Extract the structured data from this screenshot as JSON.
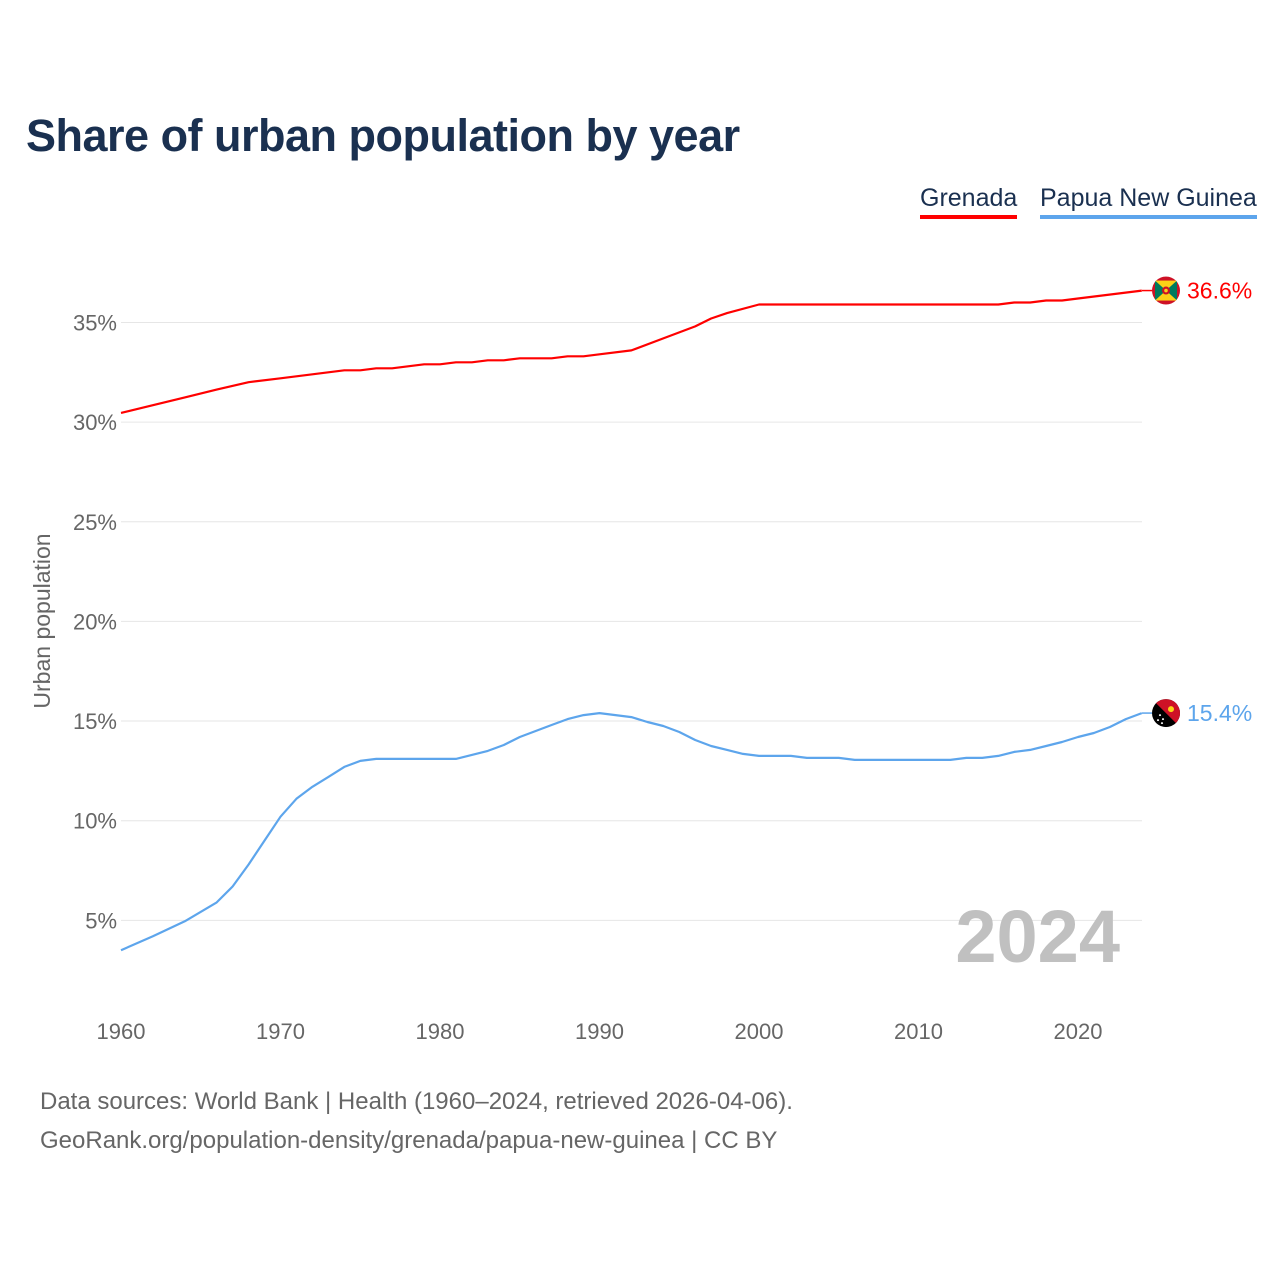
{
  "title": "Share of urban population by year",
  "legend": [
    {
      "label": "Grenada",
      "color": "#ff0000"
    },
    {
      "label": "Papua New Guinea",
      "color": "#5da5ec"
    }
  ],
  "year_watermark": "2024",
  "sources": {
    "line1": "Data sources: World Bank | Health (1960–2024, retrieved 2026-04-06).",
    "line2": "GeoRank.org/population-density/grenada/papua-new-guinea | CC BY"
  },
  "chart_data": {
    "type": "line",
    "title": "Share of urban population by year",
    "xlabel": "",
    "ylabel": "Urban population",
    "xlim": [
      1960,
      2024
    ],
    "ylim": [
      0,
      37
    ],
    "x_ticks": [
      1960,
      1970,
      1980,
      1990,
      2000,
      2010,
      2020
    ],
    "x_tick_labels": [
      "1960",
      "1970",
      "1980",
      "1990",
      "2000",
      "2010",
      "2020"
    ],
    "y_ticks": [
      5,
      10,
      15,
      20,
      25,
      30,
      35
    ],
    "y_tick_labels": [
      "5%",
      "10%",
      "15%",
      "20%",
      "25%",
      "30%",
      "35%"
    ],
    "grid": true,
    "legend_position": "top-right",
    "series": [
      {
        "name": "Grenada",
        "color": "#ff0000",
        "end_label": "36.6%",
        "flag": "grenada-flag",
        "points": [
          [
            1960,
            30.46
          ],
          [
            1962,
            30.85
          ],
          [
            1964,
            31.24
          ],
          [
            1966,
            31.63
          ],
          [
            1968,
            32.0
          ],
          [
            1970,
            32.2
          ],
          [
            1972,
            32.4
          ],
          [
            1974,
            32.6
          ],
          [
            1975,
            32.6
          ],
          [
            1976,
            32.7
          ],
          [
            1977,
            32.7
          ],
          [
            1979,
            32.9
          ],
          [
            1980,
            32.9
          ],
          [
            1981,
            33.0
          ],
          [
            1982,
            33.0
          ],
          [
            1983,
            33.1
          ],
          [
            1984,
            33.1
          ],
          [
            1985,
            33.2
          ],
          [
            1987,
            33.2
          ],
          [
            1988,
            33.3
          ],
          [
            1989,
            33.3
          ],
          [
            1990,
            33.4
          ],
          [
            1992,
            33.6
          ],
          [
            1994,
            34.2
          ],
          [
            1996,
            34.8
          ],
          [
            1997,
            35.2
          ],
          [
            1998,
            35.47
          ],
          [
            2000,
            35.9
          ],
          [
            2015,
            35.9
          ],
          [
            2016,
            36.0
          ],
          [
            2017,
            36.0
          ],
          [
            2018,
            36.1
          ],
          [
            2019,
            36.1
          ],
          [
            2020,
            36.2
          ],
          [
            2024,
            36.6
          ]
        ]
      },
      {
        "name": "Papua New Guinea",
        "color": "#5da5ec",
        "end_label": "15.4%",
        "flag": "papua-new-guinea-flag",
        "points": [
          [
            1960,
            3.5
          ],
          [
            1962,
            4.2
          ],
          [
            1964,
            4.95
          ],
          [
            1966,
            5.9
          ],
          [
            1967,
            6.7
          ],
          [
            1968,
            7.8
          ],
          [
            1969,
            9.0
          ],
          [
            1970,
            10.2
          ],
          [
            1971,
            11.1
          ],
          [
            1972,
            11.7
          ],
          [
            1973,
            12.2
          ],
          [
            1974,
            12.7
          ],
          [
            1975,
            13.0
          ],
          [
            1976,
            13.1
          ],
          [
            1981,
            13.1
          ],
          [
            1983,
            13.5
          ],
          [
            1984,
            13.8
          ],
          [
            1985,
            14.2
          ],
          [
            1986,
            14.5
          ],
          [
            1987,
            14.8
          ],
          [
            1988,
            15.1
          ],
          [
            1989,
            15.3
          ],
          [
            1990,
            15.4
          ],
          [
            1991,
            15.3
          ],
          [
            1992,
            15.2
          ],
          [
            1993,
            14.95
          ],
          [
            1994,
            14.75
          ],
          [
            1995,
            14.45
          ],
          [
            1996,
            14.05
          ],
          [
            1997,
            13.75
          ],
          [
            1998,
            13.55
          ],
          [
            1999,
            13.35
          ],
          [
            2000,
            13.25
          ],
          [
            2002,
            13.25
          ],
          [
            2003,
            13.15
          ],
          [
            2005,
            13.15
          ],
          [
            2006,
            13.05
          ],
          [
            2012,
            13.05
          ],
          [
            2013,
            13.15
          ],
          [
            2014,
            13.15
          ],
          [
            2015,
            13.25
          ],
          [
            2016,
            13.45
          ],
          [
            2017,
            13.55
          ],
          [
            2018,
            13.75
          ],
          [
            2019,
            13.95
          ],
          [
            2020,
            14.2
          ],
          [
            2021,
            14.4
          ],
          [
            2022,
            14.7
          ],
          [
            2023,
            15.1
          ],
          [
            2024,
            15.4
          ]
        ]
      }
    ]
  }
}
